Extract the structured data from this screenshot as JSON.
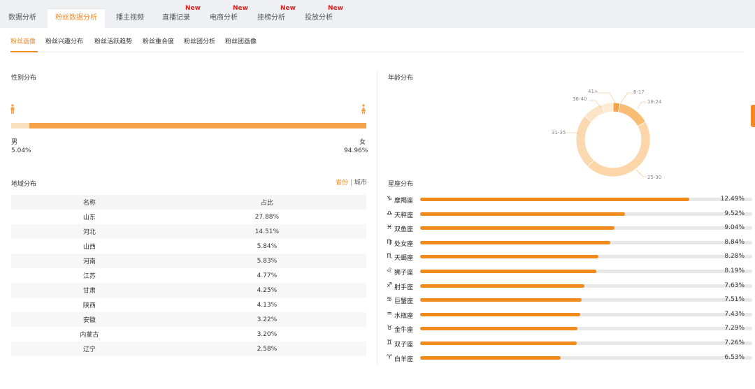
{
  "colors": {
    "accent": "#f08a24",
    "new_badge": "#e0201d",
    "bar": "#f08a1d",
    "donut_light": "#fcd6a8",
    "donut_mid": "#f8bd74",
    "donut_dark": "#f4a34a"
  },
  "top_tabs": [
    {
      "label": "数据分析",
      "new": ""
    },
    {
      "label": "粉丝数据分析",
      "new": ""
    },
    {
      "label": "播主视频",
      "new": ""
    },
    {
      "label": "直播记录",
      "new": "New"
    },
    {
      "label": "电商分析",
      "new": "New"
    },
    {
      "label": "挂榜分析",
      "new": "New"
    },
    {
      "label": "投放分析",
      "new": "New"
    }
  ],
  "sub_tabs": [
    "粉丝画像",
    "粉丝兴趣分布",
    "粉丝活跃趋势",
    "粉丝重合度",
    "粉丝团分析",
    "粉丝团画像"
  ],
  "gender": {
    "title": "性别分布",
    "male_icon": "male-person-icon",
    "female_icon": "female-person-icon",
    "male_label": "男",
    "male_value": "5.04%",
    "female_label": "女",
    "female_value": "94.96%",
    "female_fraction": 0.9496
  },
  "region": {
    "title": "地域分布",
    "toggle_on": "省份",
    "toggle_sep": "|",
    "toggle_off": "城市",
    "headers": [
      "名称",
      "占比"
    ],
    "rows": [
      [
        "山东",
        "27.88%"
      ],
      [
        "河北",
        "14.51%"
      ],
      [
        "山西",
        "5.84%"
      ],
      [
        "河南",
        "5.83%"
      ],
      [
        "江苏",
        "4.77%"
      ],
      [
        "甘肃",
        "4.25%"
      ],
      [
        "陕西",
        "4.13%"
      ],
      [
        "安徽",
        "3.22%"
      ],
      [
        "内蒙古",
        "3.20%"
      ],
      [
        "辽宁",
        "2.58%"
      ]
    ]
  },
  "age": {
    "title": "年龄分布",
    "slices": [
      {
        "label": "6-17",
        "share": 0.03,
        "color": "#f4a34a"
      },
      {
        "label": "18-24",
        "share": 0.14,
        "color": "#f8bd74"
      },
      {
        "label": "25-30",
        "share": 0.45,
        "color": "#fcd6a8"
      },
      {
        "label": "31-35",
        "share": 0.24,
        "color": "#fbd9b0"
      },
      {
        "label": "36-40",
        "share": 0.09,
        "color": "#fce4c7"
      },
      {
        "label": "41+",
        "share": 0.05,
        "color": "#fdebd6"
      }
    ]
  },
  "zodiac": {
    "title": "星座分布",
    "items": [
      {
        "icon": "♑",
        "name": "摩羯座",
        "value": "12.49%",
        "fraction": 0.81
      },
      {
        "icon": "♎",
        "name": "天秤座",
        "value": "9.52%",
        "fraction": 0.617
      },
      {
        "icon": "♓",
        "name": "双鱼座",
        "value": "9.04%",
        "fraction": 0.586
      },
      {
        "icon": "♍",
        "name": "处女座",
        "value": "8.84%",
        "fraction": 0.573
      },
      {
        "icon": "♏",
        "name": "天蝎座",
        "value": "8.28%",
        "fraction": 0.537
      },
      {
        "icon": "♌",
        "name": "狮子座",
        "value": "8.19%",
        "fraction": 0.531
      },
      {
        "icon": "♐",
        "name": "射手座",
        "value": "7.63%",
        "fraction": 0.494
      },
      {
        "icon": "♋",
        "name": "巨蟹座",
        "value": "7.51%",
        "fraction": 0.487
      },
      {
        "icon": "♒",
        "name": "水瓶座",
        "value": "7.43%",
        "fraction": 0.482
      },
      {
        "icon": "♉",
        "name": "金牛座",
        "value": "7.29%",
        "fraction": 0.473
      },
      {
        "icon": "♊",
        "name": "双子座",
        "value": "7.26%",
        "fraction": 0.471
      },
      {
        "icon": "♈",
        "name": "白羊座",
        "value": "6.53%",
        "fraction": 0.423
      }
    ]
  }
}
